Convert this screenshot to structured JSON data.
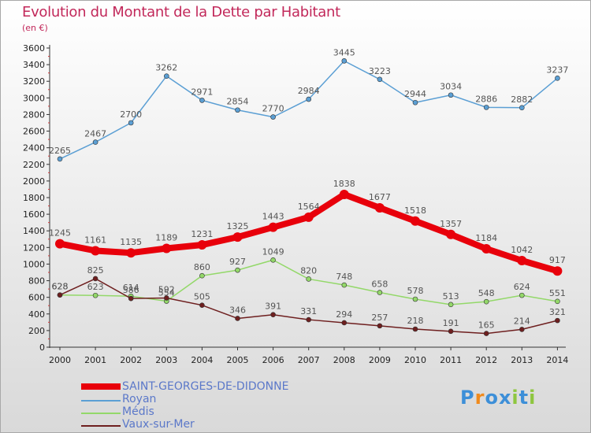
{
  "title": "Evolution du Montant de la Dette par Habitant",
  "subtitle": "(en €)",
  "logo": {
    "letters": [
      "P",
      "r",
      "o",
      "x",
      "i",
      "t",
      "i"
    ],
    "colors": [
      "#3d8fd8",
      "#f08a1c",
      "#3d8fd8",
      "#3d8fd8",
      "#8ec63f",
      "#3d8fd8",
      "#8ec63f"
    ]
  },
  "chart_data": {
    "type": "line",
    "x": [
      "2000",
      "2001",
      "2002",
      "2003",
      "2004",
      "2005",
      "2006",
      "2007",
      "2008",
      "2009",
      "2010",
      "2011",
      "2012",
      "2013",
      "2014"
    ],
    "ylim": [
      0,
      3600
    ],
    "yticks": [
      0,
      200,
      400,
      600,
      800,
      1000,
      1200,
      1400,
      1600,
      1800,
      2000,
      2200,
      2400,
      2600,
      2800,
      3000,
      3200,
      3400,
      3600
    ],
    "grid": false,
    "legend_position": "bottom-left",
    "series": [
      {
        "name": "Royan",
        "color": "#5b9fd4",
        "values": [
          2265,
          2467,
          2700,
          3262,
          2971,
          2854,
          2770,
          2984,
          3445,
          3223,
          2944,
          3034,
          2886,
          2882,
          3237
        ]
      },
      {
        "name": "Médis",
        "color": "#93d869",
        "values": [
          628,
          623,
          614,
          554,
          860,
          927,
          1049,
          820,
          748,
          658,
          578,
          513,
          548,
          624,
          551
        ]
      },
      {
        "name": "Vaux-sur-Mer",
        "color": "#6e1f1f",
        "values": [
          628,
          825,
          586,
          592,
          505,
          346,
          391,
          331,
          294,
          257,
          218,
          191,
          165,
          214,
          321
        ]
      },
      {
        "name": "SAINT-GEORGES-DE-DIDONNE",
        "color": "#e8000b",
        "values": [
          1245,
          1161,
          1135,
          1189,
          1231,
          1325,
          1443,
          1564,
          1838,
          1677,
          1518,
          1357,
          1184,
          1042,
          917
        ]
      }
    ],
    "legend": [
      "SAINT-GEORGES-DE-DIDONNE",
      "Royan",
      "Médis",
      "Vaux-sur-Mer"
    ]
  }
}
